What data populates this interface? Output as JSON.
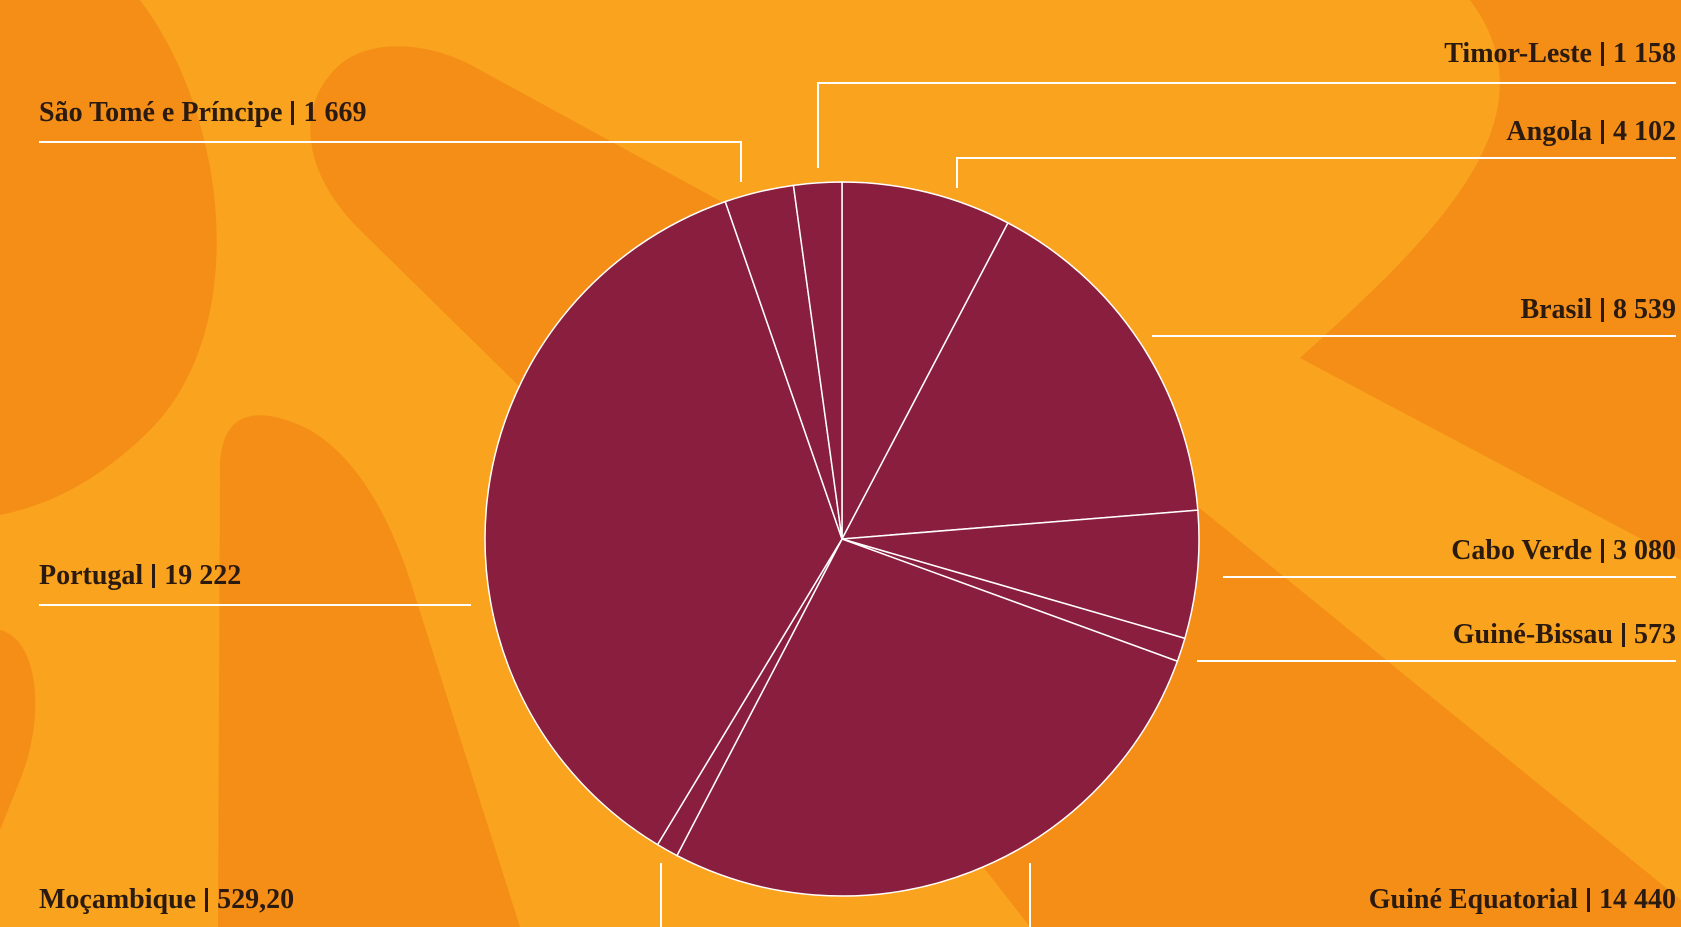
{
  "chart_data": {
    "type": "pie",
    "categories": [
      "Angola",
      "Brasil",
      "Cabo Verde",
      "Guiné-Bissau",
      "Guiné Equatorial",
      "Moçambique",
      "Portugal",
      "São Tomé e Príncipe",
      "Timor-Leste"
    ],
    "values": [
      4102,
      8539,
      3080,
      573,
      14440,
      529.2,
      19222,
      1669,
      1158
    ],
    "value_labels": [
      "4 102",
      "8 539",
      "3 080",
      "573",
      "14 440",
      "529,20",
      "19 222",
      "1 669",
      "1 158"
    ],
    "color": "#8a1e3f"
  }
}
